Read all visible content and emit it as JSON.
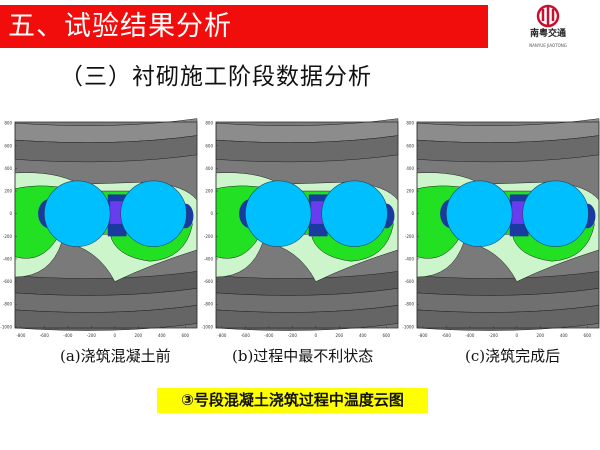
{
  "header": {
    "title": "五、试验结果分析",
    "accent_color": "#f20d0d"
  },
  "logo": {
    "name": "南粤交通",
    "subtitle": "NANYUE JIAOTONG"
  },
  "subtitle": "（三）衬砌施工阶段数据分析",
  "figures": {
    "y_ticks": [
      "800",
      "600",
      "400",
      "200",
      "0",
      "-200",
      "-400",
      "-600",
      "-800",
      "-1000"
    ],
    "x_ticks": [
      "-800",
      "-600",
      "-400",
      "-200",
      "0",
      "200",
      "400",
      "600"
    ],
    "panels": [
      {
        "caption": "(a)浇筑混凝土前"
      },
      {
        "caption": "(b)过程中最不利状态"
      },
      {
        "caption": "(c)浇筑完成后"
      }
    ],
    "colors": {
      "circle": "#00bfff",
      "green": "#22e022",
      "light_green": "#ccf5cc",
      "dark_blue": "#1a3aa0",
      "violet": "#6a3cf0",
      "gray": "#6e6e6e"
    }
  },
  "banner": {
    "text": "③号段混凝土浇筑过程中温度云图",
    "color": "#ffff00"
  }
}
